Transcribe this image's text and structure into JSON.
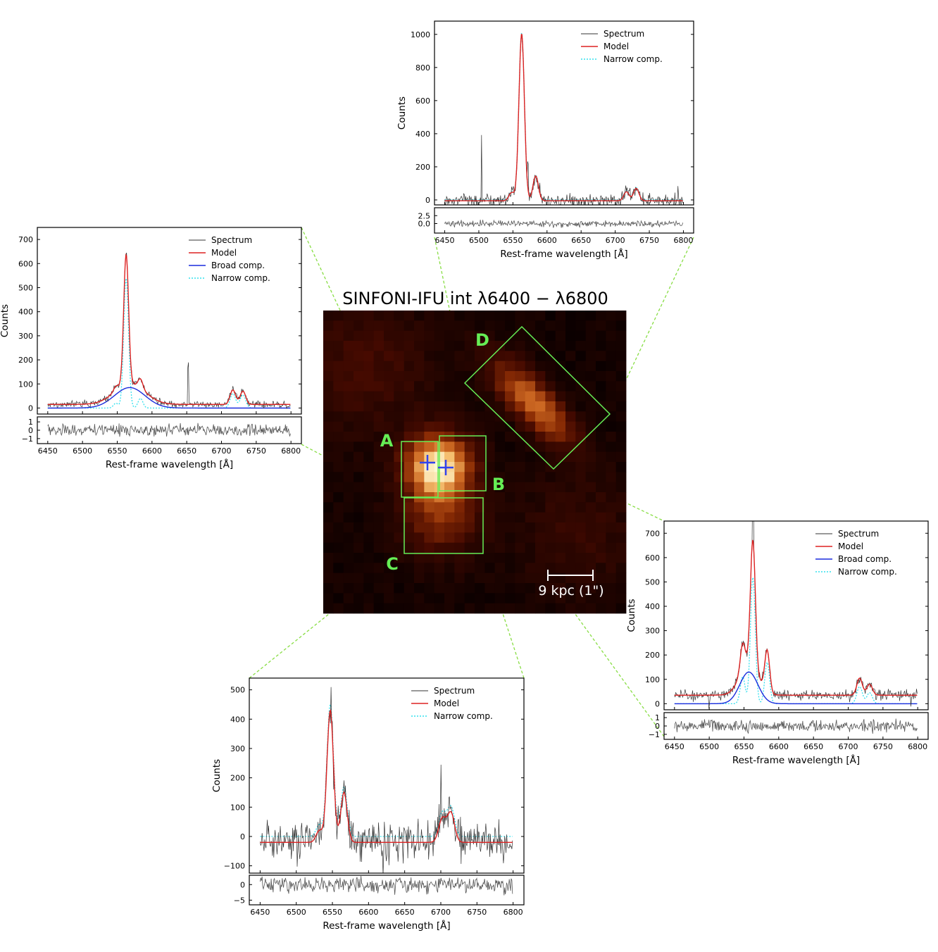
{
  "map": {
    "title": "SINFONI-IFU int λ6400 − λ6800",
    "scale_bar_label": "9 kpc (1\")",
    "region_labels": [
      "A",
      "B",
      "C",
      "D"
    ],
    "colors": {
      "box": "#66ee55",
      "connector": "#88dd44",
      "marker": "#3344ee",
      "cmap_dark": "#0a0000",
      "cmap_bright": "#fff8d0"
    }
  },
  "chart_data": [
    {
      "id": "D",
      "type": "line",
      "ylabel": "Counts",
      "xlabel": "Rest-frame wavelength [Å]",
      "xlim": [
        6435,
        6815
      ],
      "ylim": [
        -30,
        1080
      ],
      "xticks": [
        6450,
        6500,
        6550,
        6600,
        6650,
        6700,
        6750,
        6800
      ],
      "yticks": [
        0,
        200,
        400,
        600,
        800,
        1000
      ],
      "resid_ylim": [
        -3,
        5
      ],
      "resid_yticks": [
        "2.5",
        "0.0"
      ],
      "resid_ytick_values": [
        2.5,
        0.0
      ],
      "legend": [
        "Spectrum",
        "Model",
        "Narrow comp."
      ],
      "continuum": -5,
      "noise": 35,
      "resid_noise": 0.5,
      "spikes": [
        [
          6504,
          400
        ],
        [
          6572,
          150
        ],
        [
          6792,
          100
        ]
      ],
      "lines": [
        {
          "center": 6562.8,
          "sigma": 4,
          "amp": 1010,
          "kind": "narrow"
        },
        {
          "center": 6583.4,
          "sigma": 4,
          "amp": 150,
          "kind": "narrow"
        },
        {
          "center": 6548.1,
          "sigma": 4,
          "amp": 50,
          "kind": "narrow"
        },
        {
          "center": 6716.4,
          "sigma": 4,
          "amp": 55,
          "kind": "narrow"
        },
        {
          "center": 6730.8,
          "sigma": 4,
          "amp": 75,
          "kind": "narrow"
        }
      ]
    },
    {
      "id": "A",
      "type": "line",
      "ylabel": "Counts",
      "xlabel": "Rest-frame wavelength [Å]",
      "xlim": [
        6435,
        6815
      ],
      "ylim": [
        -25,
        750
      ],
      "xticks": [
        6450,
        6500,
        6550,
        6600,
        6650,
        6700,
        6750,
        6800
      ],
      "yticks": [
        0,
        100,
        200,
        300,
        400,
        500,
        600,
        700
      ],
      "resid_ylim": [
        -1.6,
        1.6
      ],
      "resid_yticks": [
        "1",
        "0",
        "−1"
      ],
      "resid_ytick_values": [
        1,
        0,
        -1
      ],
      "legend": [
        "Spectrum",
        "Model",
        "Broad comp.",
        "Narrow comp."
      ],
      "continuum": 15,
      "noise": 12,
      "resid_noise": 0.35,
      "spikes": [
        [
          6652,
          160
        ]
      ],
      "lines": [
        {
          "center": 6562.8,
          "sigma": 3.5,
          "amp": 540,
          "kind": "narrow"
        },
        {
          "center": 6583.4,
          "sigma": 3.5,
          "amp": 40,
          "kind": "narrow"
        },
        {
          "center": 6548.1,
          "sigma": 3.5,
          "amp": 20,
          "kind": "narrow"
        },
        {
          "center": 6716.4,
          "sigma": 4,
          "amp": 60,
          "kind": "narrow"
        },
        {
          "center": 6730.8,
          "sigma": 4,
          "amp": 55,
          "kind": "narrow"
        },
        {
          "center": 6568,
          "sigma": 22,
          "amp": 85,
          "kind": "broad"
        }
      ]
    },
    {
      "id": "B",
      "type": "line",
      "ylabel": "Counts",
      "xlabel": "Rest-frame wavelength [Å]",
      "xlim": [
        6435,
        6815
      ],
      "ylim": [
        -25,
        750
      ],
      "xticks": [
        6450,
        6500,
        6550,
        6600,
        6650,
        6700,
        6750,
        6800
      ],
      "yticks": [
        0,
        100,
        200,
        300,
        400,
        500,
        600,
        700
      ],
      "resid_ylim": [
        -1.6,
        1.6
      ],
      "resid_yticks": [
        "1",
        "0",
        "−1"
      ],
      "resid_ytick_values": [
        1,
        0,
        -1
      ],
      "legend": [
        "Spectrum",
        "Model",
        "Broad comp.",
        "Narrow comp."
      ],
      "continuum": 35,
      "noise": 18,
      "resid_noise": 0.35,
      "spikes": [
        [
          6563,
          230
        ],
        [
          6500,
          -50
        ],
        [
          6790,
          -40
        ]
      ],
      "lines": [
        {
          "center": 6562.8,
          "sigma": 3.5,
          "amp": 520,
          "kind": "narrow"
        },
        {
          "center": 6583.4,
          "sigma": 3.5,
          "amp": 170,
          "kind": "narrow"
        },
        {
          "center": 6548.1,
          "sigma": 3.5,
          "amp": 110,
          "kind": "narrow"
        },
        {
          "center": 6716.4,
          "sigma": 4,
          "amp": 70,
          "kind": "narrow"
        },
        {
          "center": 6730.8,
          "sigma": 4,
          "amp": 45,
          "kind": "narrow"
        },
        {
          "center": 6557,
          "sigma": 13,
          "amp": 130,
          "kind": "broad"
        }
      ]
    },
    {
      "id": "C",
      "type": "line",
      "ylabel": "Counts",
      "xlabel": "Rest-frame wavelength [Å]",
      "xlim": [
        6435,
        6815
      ],
      "ylim": [
        -125,
        540
      ],
      "xticks": [
        6450,
        6500,
        6550,
        6600,
        6650,
        6700,
        6750,
        6800
      ],
      "yticks": [
        -100,
        0,
        100,
        200,
        300,
        400,
        500
      ],
      "resid_ylim": [
        -6.5,
        3
      ],
      "resid_yticks": [
        "0",
        "−5"
      ],
      "resid_ytick_values": [
        0,
        -5
      ],
      "legend": [
        "Spectrum",
        "Model",
        "Narrow comp."
      ],
      "continuum": -20,
      "noise": 55,
      "resid_noise": 1.2,
      "spikes": [
        [
          6548,
          80
        ],
        [
          6700,
          200
        ],
        [
          6620,
          -100
        ]
      ],
      "lines": [
        {
          "center": 6547,
          "sigma": 4.5,
          "amp": 450,
          "kind": "narrow"
        },
        {
          "center": 6566,
          "sigma": 4.5,
          "amp": 170,
          "kind": "narrow"
        },
        {
          "center": 6532,
          "sigma": 4.5,
          "amp": 40,
          "kind": "narrow"
        },
        {
          "center": 6702,
          "sigma": 5,
          "amp": 80,
          "kind": "narrow"
        },
        {
          "center": 6714,
          "sigma": 5,
          "amp": 100,
          "kind": "narrow"
        }
      ]
    }
  ]
}
